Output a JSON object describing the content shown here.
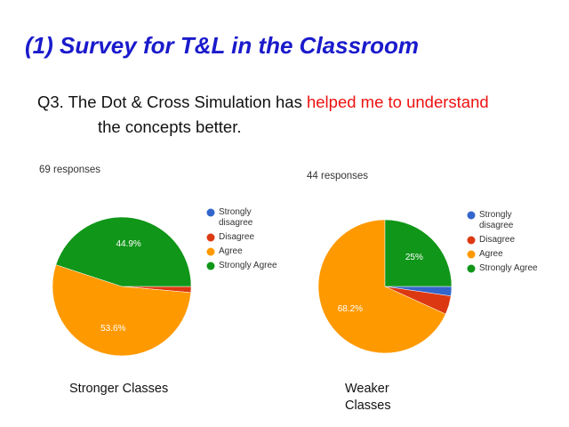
{
  "title": "(1) Survey for T&L in the Classroom",
  "question": {
    "start": "Q3. The Dot & Cross Simulation has ",
    "highlight": "helped me to understand",
    "end": "the concepts better."
  },
  "chart_data": [
    {
      "type": "pie",
      "responses": "69 responses",
      "label": "Stronger Classes",
      "categories": [
        "Strongly disagree",
        "Disagree",
        "Agree",
        "Strongly Agree"
      ],
      "values": [
        0,
        1.4,
        53.6,
        44.9
      ],
      "value_labels": [
        null,
        null,
        "53.6%",
        "44.9%"
      ],
      "colors": [
        "#3366cc",
        "#dc3912",
        "#ff9900",
        "#109618"
      ]
    },
    {
      "type": "pie",
      "responses": "44 responses",
      "label": "Weaker Classes",
      "categories": [
        "Strongly disagree",
        "Disagree",
        "Agree",
        "Strongly Agree"
      ],
      "values": [
        2.3,
        4.5,
        68.2,
        25
      ],
      "value_labels": [
        null,
        null,
        "68.2%",
        "25%"
      ],
      "colors": [
        "#3366cc",
        "#dc3912",
        "#ff9900",
        "#109618"
      ]
    }
  ]
}
